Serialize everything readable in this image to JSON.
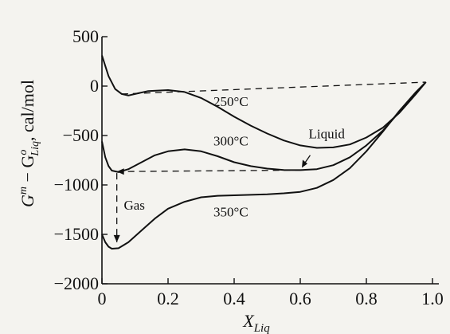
{
  "chart_data": {
    "type": "line",
    "xlabel": "X",
    "xlabel_sub": "Liq",
    "ylabel": "G^m − G^o_Liq, cal/mol",
    "ylabel_parts": {
      "main": "G",
      "sup": "m",
      "minus": " − G",
      "sup2": "o",
      "sub2": "Liq",
      "unit": ", cal/mol"
    },
    "xlim": [
      0,
      1.0
    ],
    "ylim": [
      -2000,
      500
    ],
    "x_ticks": [
      0,
      0.2,
      0.4,
      0.6,
      0.8,
      1.0
    ],
    "x_tick_labels": [
      "0",
      "0.2",
      "0.4",
      "0.6",
      "0.8",
      "1.0"
    ],
    "y_ticks": [
      500,
      0,
      -500,
      -1000,
      -1500,
      -2000
    ],
    "y_tick_labels": [
      "500",
      "0",
      "−500",
      "−1000",
      "−1500",
      "−2000"
    ],
    "grid": false,
    "series": [
      {
        "name": "250°C",
        "x": [
          0.0,
          0.02,
          0.04,
          0.06,
          0.08,
          0.1,
          0.14,
          0.2,
          0.25,
          0.3,
          0.35,
          0.4,
          0.45,
          0.5,
          0.55,
          0.6,
          0.65,
          0.7,
          0.75,
          0.8,
          0.85,
          0.9,
          0.95,
          0.98
        ],
        "y": [
          310,
          100,
          -30,
          -80,
          -95,
          -80,
          -50,
          -40,
          -60,
          -120,
          -210,
          -310,
          -400,
          -480,
          -550,
          -600,
          -625,
          -620,
          -590,
          -520,
          -420,
          -270,
          -80,
          40
        ]
      },
      {
        "name": "300°C",
        "x": [
          0.0,
          0.01,
          0.02,
          0.03,
          0.05,
          0.08,
          0.12,
          0.16,
          0.2,
          0.25,
          0.3,
          0.35,
          0.4,
          0.45,
          0.5,
          0.55,
          0.6,
          0.65,
          0.7,
          0.75,
          0.8,
          0.85,
          0.9,
          0.95,
          0.98
        ],
        "y": [
          -560,
          -720,
          -810,
          -855,
          -870,
          -840,
          -770,
          -700,
          -660,
          -640,
          -660,
          -710,
          -770,
          -810,
          -835,
          -848,
          -850,
          -840,
          -800,
          -720,
          -600,
          -450,
          -260,
          -70,
          40
        ]
      },
      {
        "name": "350°C",
        "x": [
          0.0,
          0.01,
          0.02,
          0.03,
          0.05,
          0.08,
          0.12,
          0.16,
          0.2,
          0.25,
          0.3,
          0.35,
          0.4,
          0.45,
          0.5,
          0.55,
          0.6,
          0.65,
          0.7,
          0.75,
          0.8,
          0.85,
          0.9,
          0.95,
          0.98
        ],
        "y": [
          -1500,
          -1580,
          -1625,
          -1645,
          -1640,
          -1580,
          -1460,
          -1340,
          -1240,
          -1170,
          -1125,
          -1110,
          -1105,
          -1100,
          -1095,
          -1085,
          -1070,
          -1030,
          -950,
          -830,
          -660,
          -460,
          -250,
          -60,
          40
        ]
      }
    ],
    "annotations": [
      {
        "text": "250°C",
        "x": 0.39,
        "y": -200
      },
      {
        "text": "300°C",
        "x": 0.39,
        "y": -600
      },
      {
        "text": "350°C",
        "x": 0.39,
        "y": -1320
      },
      {
        "text": "Liquid",
        "x": 0.68,
        "y": -530
      },
      {
        "text": "Gas",
        "x": 0.098,
        "y": -1250
      }
    ],
    "reference_lines": [
      {
        "name": "common-tangent-250",
        "style": "dashed",
        "x": [
          0.06,
          0.98
        ],
        "y": [
          -80,
          40
        ]
      },
      {
        "name": "common-tangent-300",
        "style": "dashed",
        "x": [
          0.045,
          0.6
        ],
        "y": [
          -865,
          -850
        ]
      },
      {
        "name": "gas-drop-line",
        "style": "dashed",
        "x": [
          0.045,
          0.045
        ],
        "y": [
          -880,
          -1580
        ]
      }
    ]
  }
}
